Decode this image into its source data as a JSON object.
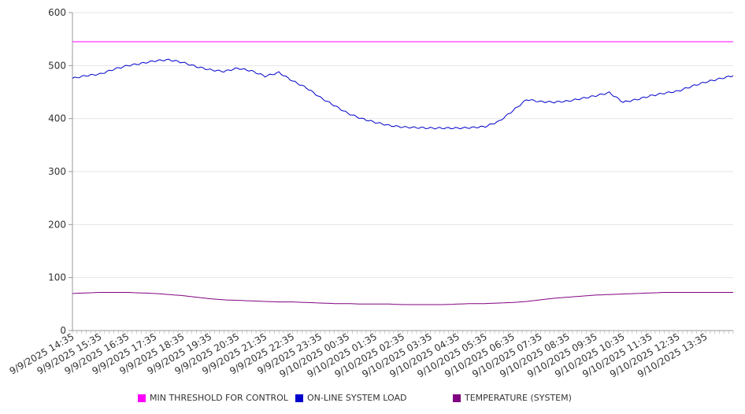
{
  "chart_data": {
    "type": "line",
    "title": "",
    "xlabel": "",
    "ylabel": "",
    "ylim": [
      0,
      600
    ],
    "y_ticks": [
      0,
      100,
      200,
      300,
      400,
      500,
      600
    ],
    "grid": true,
    "legend_position": "bottom",
    "x_tick_labels": [
      "9/9/2025 14:35",
      "9/9/2025 15:35",
      "9/9/2025 16:35",
      "9/9/2025 17:35",
      "9/9/2025 18:35",
      "9/9/2025 19:35",
      "9/9/2025 20:35",
      "9/9/2025 21:35",
      "9/9/2025 22:35",
      "9/9/2025 23:35",
      "9/10/2025 00:35",
      "9/10/2025 01:35",
      "9/10/2025 02:35",
      "9/10/2025 03:35",
      "9/10/2025 04:35",
      "9/10/2025 05:35",
      "9/10/2025 06:35",
      "9/10/2025 07:35",
      "9/10/2025 08:35",
      "9/10/2025 09:35",
      "9/10/2025 10:35",
      "9/10/2025 11:35",
      "9/10/2025 12:35",
      "9/10/2025 13:35"
    ],
    "x": [
      "9/9/2025 14:35",
      "9/9/2025 15:05",
      "9/9/2025 15:35",
      "9/9/2025 16:05",
      "9/9/2025 16:35",
      "9/9/2025 17:05",
      "9/9/2025 17:35",
      "9/9/2025 18:05",
      "9/9/2025 18:35",
      "9/9/2025 19:05",
      "9/9/2025 19:35",
      "9/9/2025 20:05",
      "9/9/2025 20:35",
      "9/9/2025 21:05",
      "9/9/2025 21:35",
      "9/9/2025 22:05",
      "9/9/2025 22:35",
      "9/9/2025 23:05",
      "9/9/2025 23:35",
      "9/10/2025 00:05",
      "9/10/2025 00:35",
      "9/10/2025 01:05",
      "9/10/2025 01:35",
      "9/10/2025 02:05",
      "9/10/2025 02:35",
      "9/10/2025 03:05",
      "9/10/2025 03:35",
      "9/10/2025 04:05",
      "9/10/2025 04:35",
      "9/10/2025 05:05",
      "9/10/2025 05:35",
      "9/10/2025 06:05",
      "9/10/2025 06:35",
      "9/10/2025 07:05",
      "9/10/2025 07:35",
      "9/10/2025 08:05",
      "9/10/2025 08:35",
      "9/10/2025 09:05",
      "9/10/2025 09:35",
      "9/10/2025 10:05",
      "9/10/2025 10:35",
      "9/10/2025 11:05",
      "9/10/2025 11:35",
      "9/10/2025 12:05",
      "9/10/2025 12:35",
      "9/10/2025 13:05",
      "9/10/2025 13:35",
      "9/10/2025 14:05",
      "9/10/2025 14:35"
    ],
    "series": [
      {
        "name": "MIN THRESHOLD FOR CONTROL",
        "color": "#ff00ff",
        "values": [
          545,
          545,
          545,
          545,
          545,
          545,
          545,
          545,
          545,
          545,
          545,
          545,
          545,
          545,
          545,
          545,
          545,
          545,
          545,
          545,
          545,
          545,
          545,
          545,
          545,
          545,
          545,
          545,
          545,
          545,
          545,
          545,
          545,
          545,
          545,
          545,
          545,
          545,
          545,
          545,
          545,
          545,
          545,
          545,
          545,
          545,
          545,
          545,
          545
        ]
      },
      {
        "name": "ON-LINE SYSTEM LOAD",
        "color": "#0000cc",
        "values": [
          476,
          481,
          484,
          493,
          500,
          504,
          509,
          511,
          506,
          498,
          492,
          489,
          495,
          490,
          480,
          487,
          471,
          458,
          440,
          425,
          410,
          400,
          393,
          387,
          384,
          383,
          382,
          382,
          382,
          383,
          385,
          395,
          415,
          436,
          432,
          431,
          433,
          438,
          443,
          449,
          431,
          436,
          443,
          448,
          452,
          461,
          469,
          475,
          481
        ]
      },
      {
        "name": "TEMPERATURE (SYSTEM)",
        "color": "#800080",
        "values": [
          70,
          71,
          72,
          72,
          72,
          71,
          70,
          68,
          66,
          63,
          60,
          58,
          57,
          56,
          55,
          54,
          54,
          53,
          52,
          51,
          51,
          50,
          50,
          50,
          49,
          49,
          49,
          49,
          50,
          51,
          51,
          52,
          53,
          55,
          58,
          61,
          63,
          65,
          67,
          68,
          69,
          70,
          71,
          72,
          72,
          72,
          72,
          72,
          72
        ]
      }
    ]
  }
}
